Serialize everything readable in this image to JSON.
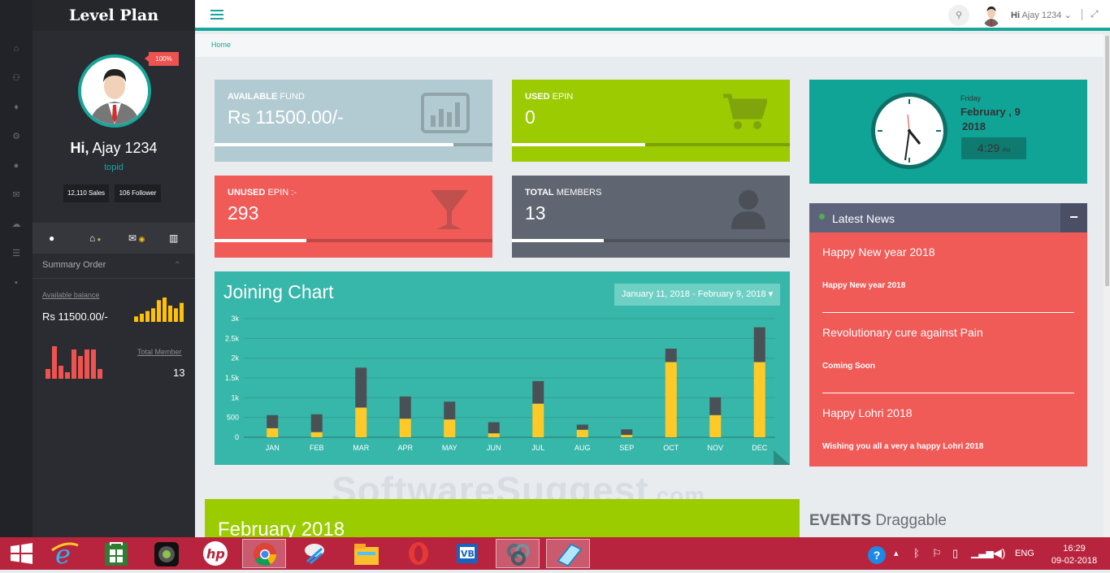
{
  "brand": "Level Plan",
  "rail_icons": [
    "home-icon",
    "users-icon",
    "rocket-icon",
    "cogs-icon",
    "map-marker-icon",
    "envelope-icon",
    "cloud-upload-icon",
    "list-icon",
    "lock-icon"
  ],
  "profile": {
    "percent": "100%",
    "greeting": "Hi,",
    "name": "Ajay 1234",
    "username": "topid",
    "sales": "12,110 Sales",
    "followers": "106 Follower"
  },
  "sidebar": {
    "summary_title": "Summary Order",
    "available_balance_label": "Available balance",
    "available_balance_value": "Rs 11500.00/-",
    "total_member_label": "Total Member",
    "total_member_value": "13",
    "sparkline_yellow": [
      2,
      3,
      4,
      5,
      8,
      9,
      6,
      5,
      7
    ],
    "sparkline_red": [
      3,
      10,
      4,
      2,
      9,
      7,
      9,
      9,
      3
    ]
  },
  "topbar": {
    "user_greeting": "Hi",
    "user_name": "Ajay 1234"
  },
  "breadcrumb": "Home",
  "stats": [
    {
      "label_bold": "AVAILABLE",
      "label_rest": "FUND",
      "value": "Rs 11500.00/-",
      "progress": 0.86,
      "color": "#b2cbd2",
      "icon": "bar-chart-icon"
    },
    {
      "label_bold": "USED",
      "label_rest": "EPIN",
      "value": "0",
      "progress": 0.48,
      "color": "#9bcb00",
      "icon": "cart-icon"
    },
    {
      "label_bold": "UNUSED",
      "label_rest": "EPIN :-",
      "value": "293",
      "progress": 0.33,
      "color": "#f05a57",
      "icon": "glass-icon"
    },
    {
      "label_bold": "TOTAL",
      "label_rest": "MEMBERS",
      "value": "13",
      "progress": 0.33,
      "color": "#5f6671",
      "icon": "user-icon"
    }
  ],
  "clock": {
    "day": "Friday",
    "date": "February , 9",
    "year": "2018",
    "time": "4:29",
    "ampm": "PM"
  },
  "news": {
    "title": "Latest News",
    "collapse": "−",
    "items": [
      {
        "title": "Happy New year 2018",
        "body": "Happy New year 2018"
      },
      {
        "title": "Revolutionary cure against Pain",
        "body": "Coming Soon"
      },
      {
        "title": "Happy Lohri 2018",
        "body": "Wishing you all a very a happy Lohri 2018"
      }
    ]
  },
  "chart_data": {
    "type": "bar",
    "title": "Joining Chart",
    "date_range": "January 11, 2018 - February 9, 2018",
    "categories": [
      "JAN",
      "FEB",
      "MAR",
      "APR",
      "MAY",
      "JUN",
      "JUL",
      "AUG",
      "SEP",
      "OCT",
      "NOV",
      "DEC"
    ],
    "series": [
      {
        "values": [
          230,
          130,
          750,
          470,
          450,
          100,
          850,
          190,
          60,
          1900,
          560,
          1900
        ],
        "color": "#ffca28"
      },
      {
        "values": [
          330,
          450,
          1010,
          560,
          450,
          280,
          570,
          130,
          140,
          340,
          450,
          880
        ],
        "color": "#4a5156"
      }
    ],
    "yticks": [
      "0",
      "500",
      "1k",
      "1.5k",
      "2k",
      "2.5k",
      "3k"
    ],
    "ylim": [
      0,
      3000
    ],
    "stacked": true,
    "grid": true
  },
  "calendar": {
    "title": "February 2018"
  },
  "events": {
    "bold": "EVENTS",
    "rest": "Draggable"
  },
  "watermark": {
    "main": "SoftwareSuggest",
    "suffix": ".com"
  },
  "taskbar": {
    "apps": [
      "windows-start-icon",
      "ie-icon",
      "store-icon",
      "media-icon",
      "hp-icon",
      "chrome-icon",
      "paint-icon",
      "explorer-icon",
      "opera-icon",
      "vb-icon",
      "network-icon",
      "notes-icon"
    ],
    "lang": "ENG",
    "time": "16:29",
    "date": "09-02-2018"
  }
}
